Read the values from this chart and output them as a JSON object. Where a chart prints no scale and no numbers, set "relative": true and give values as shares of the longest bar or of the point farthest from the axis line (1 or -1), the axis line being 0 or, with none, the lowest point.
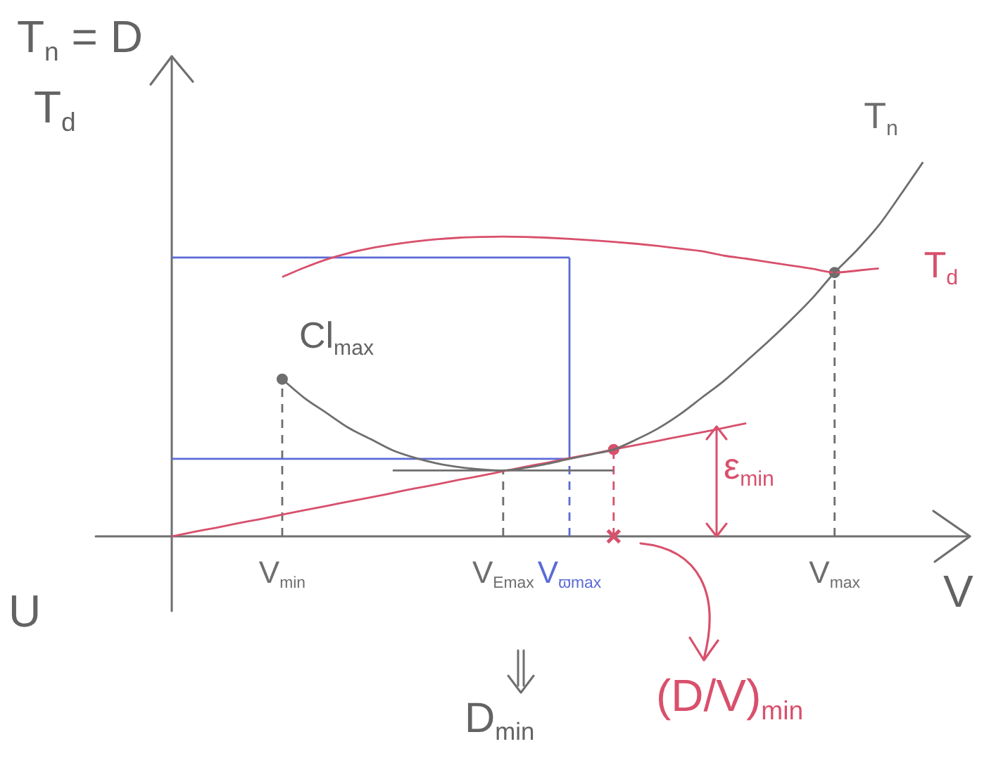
{
  "chart_data": {
    "type": "line",
    "ylabel": "T$_{n}$ = D\nT$_{d}$",
    "xlabel": "V",
    "relative": true,
    "marker": "none",
    "categories": [
      null,
      null,
      null,
      null,
      null,
      "V$_{min}$",
      null,
      null,
      null,
      null,
      null,
      null,
      null,
      null,
      null,
      "V$_{Emax}$",
      null,
      null,
      "V$_{ϖmax}$",
      null,
      null,
      null,
      null,
      null,
      null,
      null,
      null,
      null,
      null,
      null,
      "V$_{max}$",
      null,
      null,
      null,
      null,
      null,
      null
    ],
    "series": [
      {
        "name": "T$_{n}$",
        "color": "#6e6e6e",
        "values": [
          null,
          null,
          null,
          null,
          null,
          0.42,
          0.37,
          0.33,
          0.29,
          0.26,
          0.23,
          0.21,
          0.195,
          0.185,
          0.179,
          0.176,
          0.183,
          0.194,
          0.207,
          0.219,
          0.232,
          0.258,
          0.288,
          0.326,
          0.371,
          0.416,
          0.468,
          0.521,
          0.577,
          0.637,
          0.705,
          0.764,
          0.831,
          0.914,
          1,
          null,
          null
        ]
      },
      {
        "name": "T$_{d}$",
        "color": "#d8506c",
        "values": [
          null,
          null,
          null,
          null,
          null,
          0.693,
          0.718,
          0.74,
          0.757,
          0.77,
          0.78,
          0.788,
          0.794,
          0.798,
          0.8,
          0.801,
          0.8,
          0.798,
          0.795,
          0.791,
          0.787,
          0.782,
          0.776,
          0.769,
          0.762,
          0.75,
          0.742,
          0.733,
          0.724,
          0.715,
          0.705,
          0.71,
          0.716,
          null,
          null,
          null,
          null
        ]
      },
      {
        "type": "line",
        "color": "#d8506c",
        "values": [
          0,
          0.012,
          0.023,
          0.035,
          0.046,
          0.058,
          0.07,
          0.081,
          0.093,
          0.104,
          0.116,
          0.128,
          0.139,
          0.151,
          0.162,
          0.174,
          0.186,
          0.197,
          0.209,
          0.22,
          0.232,
          0.244,
          0.255,
          0.267,
          0.278,
          0.29,
          0.302,
          null,
          null,
          null,
          null,
          null,
          null,
          null,
          null,
          null,
          null
        ]
      },
      {
        "type": "line",
        "color": "#5b6bd6",
        "values": [
          0.745,
          0.745,
          0.745,
          0.745,
          0.745,
          0.745,
          0.745,
          0.745,
          0.745,
          0.745,
          0.745,
          0.745,
          0.745,
          0.745,
          0.745,
          0.745,
          0.745,
          0.745,
          0.745,
          null,
          null,
          null,
          null,
          null,
          null,
          null,
          null,
          null,
          null,
          null,
          null,
          null,
          null,
          null,
          null,
          null,
          null
        ]
      },
      {
        "type": "line",
        "color": "#5b6bd6",
        "values": [
          0.207,
          0.207,
          0.207,
          0.207,
          0.207,
          0.207,
          0.207,
          0.207,
          0.207,
          0.207,
          0.207,
          0.207,
          0.207,
          0.207,
          0.207,
          0.207,
          0.207,
          0.207,
          0.207,
          null,
          null,
          null,
          null,
          null,
          null,
          null,
          null,
          null,
          null,
          null,
          null,
          null,
          null,
          null,
          null,
          null,
          null
        ]
      },
      {
        "type": "line",
        "color": "#6e6e6e",
        "values": [
          null,
          null,
          null,
          null,
          null,
          null,
          null,
          null,
          null,
          null,
          0.176,
          0.176,
          0.176,
          0.176,
          0.176,
          0.176,
          0.176,
          0.176,
          0.176,
          0.176,
          0.176,
          null,
          null,
          null,
          null,
          null,
          null,
          null,
          null,
          null,
          null,
          null,
          null,
          null,
          null,
          null,
          null
        ]
      },
      {
        "type": "lollipop",
        "color": "#6e6e6e",
        "marker": "circle",
        "line_style": "dashed",
        "values": [
          null,
          null,
          null,
          null,
          null,
          0.42,
          null,
          null,
          null,
          null,
          null,
          null,
          null,
          null,
          null,
          null,
          null,
          null,
          null,
          null,
          null,
          null,
          null,
          null,
          null,
          null,
          null,
          null,
          null,
          null,
          0.705,
          null,
          null,
          null,
          null,
          null,
          null
        ]
      },
      {
        "type": "line",
        "color": "#6e6e6e",
        "line_style": "dashed",
        "x": [
          "V$_{Emax}$",
          "V$_{Emax}$"
        ],
        "values": [
          0,
          0.176
        ]
      },
      {
        "type": "line",
        "color": "#5b6bd6",
        "line_style": "dashed",
        "x": [
          "V$_{ϖmax}$",
          "V$_{ϖmax}$"
        ],
        "values": [
          0,
          0.207
        ]
      },
      {
        "type": "line",
        "color": "#5b6bd6",
        "x": [
          "V$_{ϖmax}$",
          "V$_{ϖmax}$"
        ],
        "values": [
          0.207,
          0.745
        ]
      },
      {
        "type": "lollipop",
        "color": "#d8506c",
        "marker": "circle",
        "line_style": "dashed",
        "values": [
          null,
          null,
          null,
          null,
          null,
          null,
          null,
          null,
          null,
          null,
          null,
          null,
          null,
          null,
          null,
          null,
          null,
          null,
          null,
          null,
          0.232,
          null,
          null,
          null,
          null,
          null,
          null,
          null,
          null,
          null,
          null,
          null,
          null,
          null,
          null,
          null,
          null
        ]
      },
      {
        "type": "scatter",
        "color": "#d8506c",
        "marker": "cross",
        "values": [
          null,
          null,
          null,
          null,
          null,
          null,
          null,
          null,
          null,
          null,
          null,
          null,
          null,
          null,
          null,
          null,
          null,
          null,
          null,
          null,
          0,
          null,
          null,
          null,
          null,
          null,
          null,
          null,
          null,
          null,
          null,
          null,
          null,
          null,
          null,
          null,
          null
        ]
      }
    ],
    "annotations": [
      {
        "text": "Cl$_{max}$",
        "x": "V$_{min}$",
        "y": 0.42
      },
      "ε$_{min}$",
      "D$_{min}$",
      "(D/V)$_{min}$",
      "U"
    ]
  }
}
